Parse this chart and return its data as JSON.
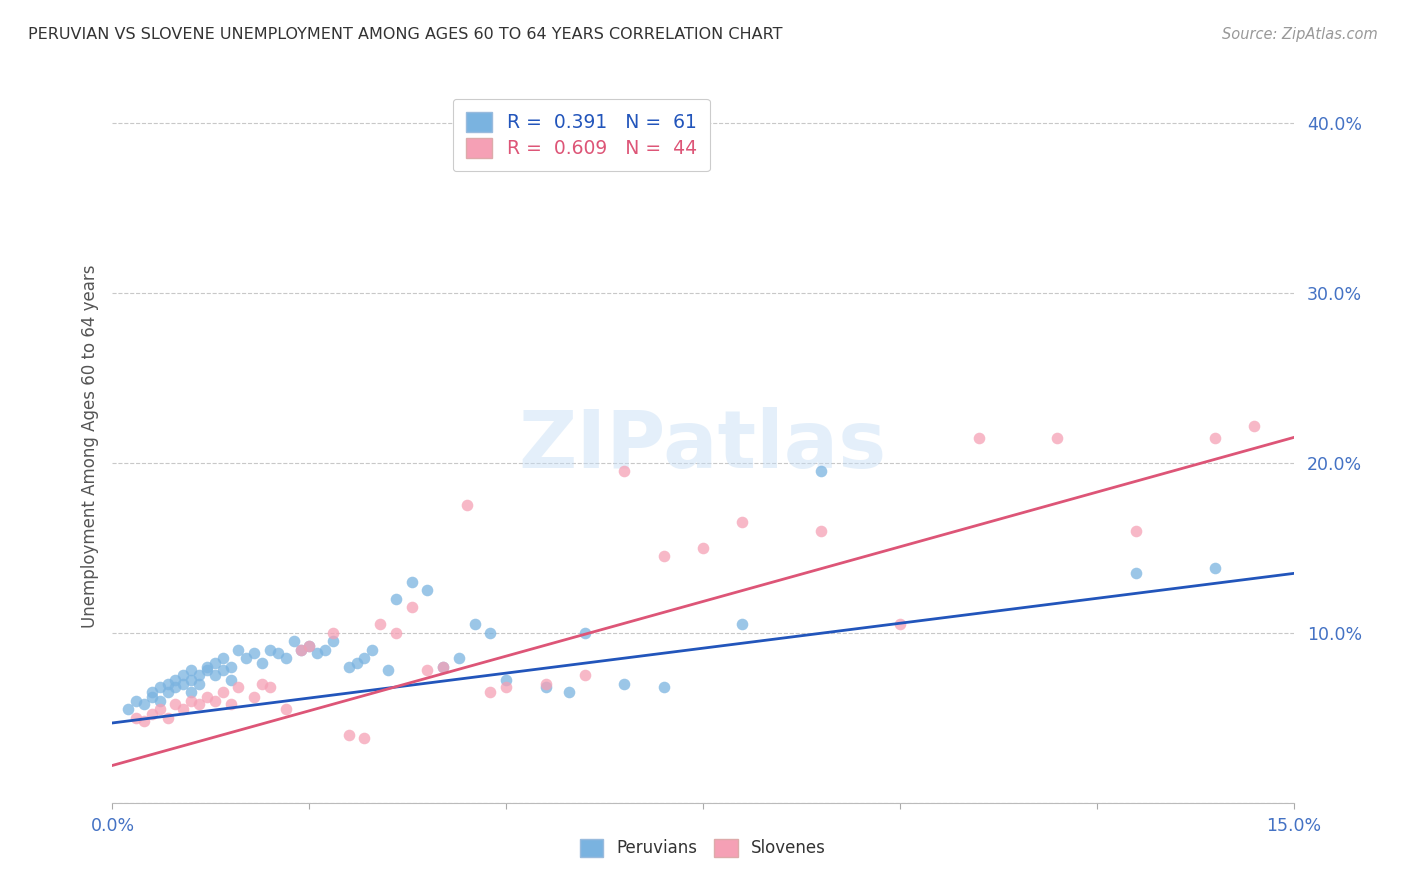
{
  "title": "PERUVIAN VS SLOVENE UNEMPLOYMENT AMONG AGES 60 TO 64 YEARS CORRELATION CHART",
  "source": "Source: ZipAtlas.com",
  "ylabel": "Unemployment Among Ages 60 to 64 years",
  "xlim": [
    0.0,
    0.15
  ],
  "ylim": [
    0.0,
    0.42
  ],
  "blue_R": 0.391,
  "blue_N": 61,
  "pink_R": 0.609,
  "pink_N": 44,
  "blue_color": "#7ab3e0",
  "pink_color": "#f5a0b5",
  "blue_line_color": "#2255bb",
  "pink_line_color": "#dd5577",
  "watermark": "ZIPatlas",
  "background_color": "#ffffff",
  "grid_color": "#c8c8c8",
  "axis_label_color": "#4472c4",
  "title_color": "#333333",
  "blue_line_x0": 0.0,
  "blue_line_y0": 0.047,
  "blue_line_x1": 0.15,
  "blue_line_y1": 0.135,
  "pink_line_x0": 0.0,
  "pink_line_y0": 0.022,
  "pink_line_x1": 0.15,
  "pink_line_y1": 0.215,
  "peruvians_x": [
    0.002,
    0.003,
    0.004,
    0.005,
    0.005,
    0.006,
    0.006,
    0.007,
    0.007,
    0.008,
    0.008,
    0.009,
    0.009,
    0.01,
    0.01,
    0.01,
    0.011,
    0.011,
    0.012,
    0.012,
    0.013,
    0.013,
    0.014,
    0.014,
    0.015,
    0.015,
    0.016,
    0.017,
    0.018,
    0.019,
    0.02,
    0.021,
    0.022,
    0.023,
    0.024,
    0.025,
    0.026,
    0.027,
    0.028,
    0.03,
    0.031,
    0.032,
    0.033,
    0.035,
    0.036,
    0.038,
    0.04,
    0.042,
    0.044,
    0.046,
    0.048,
    0.05,
    0.055,
    0.058,
    0.06,
    0.065,
    0.07,
    0.08,
    0.09,
    0.13,
    0.14
  ],
  "peruvians_y": [
    0.055,
    0.06,
    0.058,
    0.062,
    0.065,
    0.06,
    0.068,
    0.065,
    0.07,
    0.068,
    0.072,
    0.07,
    0.075,
    0.065,
    0.072,
    0.078,
    0.07,
    0.075,
    0.078,
    0.08,
    0.075,
    0.082,
    0.078,
    0.085,
    0.072,
    0.08,
    0.09,
    0.085,
    0.088,
    0.082,
    0.09,
    0.088,
    0.085,
    0.095,
    0.09,
    0.092,
    0.088,
    0.09,
    0.095,
    0.08,
    0.082,
    0.085,
    0.09,
    0.078,
    0.12,
    0.13,
    0.125,
    0.08,
    0.085,
    0.105,
    0.1,
    0.072,
    0.068,
    0.065,
    0.1,
    0.07,
    0.068,
    0.105,
    0.195,
    0.135,
    0.138
  ],
  "slovenes_x": [
    0.003,
    0.004,
    0.005,
    0.006,
    0.007,
    0.008,
    0.009,
    0.01,
    0.011,
    0.012,
    0.013,
    0.014,
    0.015,
    0.016,
    0.018,
    0.019,
    0.02,
    0.022,
    0.024,
    0.025,
    0.028,
    0.03,
    0.032,
    0.034,
    0.036,
    0.038,
    0.04,
    0.042,
    0.045,
    0.048,
    0.05,
    0.055,
    0.06,
    0.065,
    0.07,
    0.075,
    0.08,
    0.09,
    0.1,
    0.11,
    0.12,
    0.13,
    0.14,
    0.145
  ],
  "slovenes_y": [
    0.05,
    0.048,
    0.052,
    0.055,
    0.05,
    0.058,
    0.055,
    0.06,
    0.058,
    0.062,
    0.06,
    0.065,
    0.058,
    0.068,
    0.062,
    0.07,
    0.068,
    0.055,
    0.09,
    0.092,
    0.1,
    0.04,
    0.038,
    0.105,
    0.1,
    0.115,
    0.078,
    0.08,
    0.175,
    0.065,
    0.068,
    0.07,
    0.075,
    0.195,
    0.145,
    0.15,
    0.165,
    0.16,
    0.105,
    0.215,
    0.215,
    0.16,
    0.215,
    0.222
  ]
}
